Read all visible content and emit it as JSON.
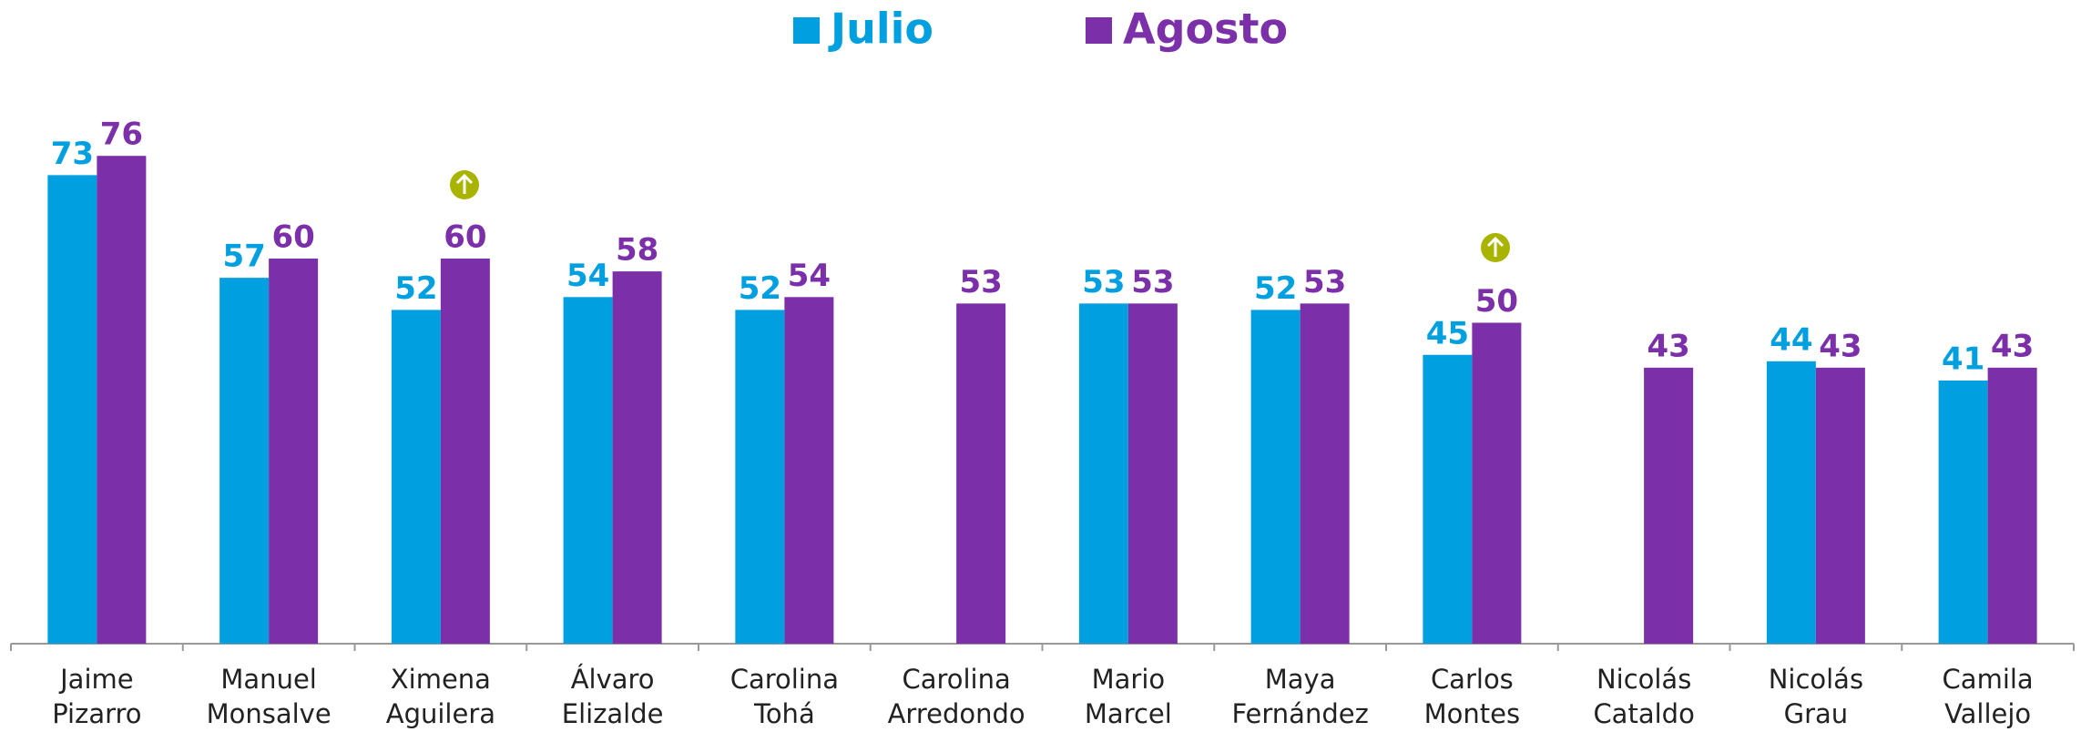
{
  "chart_data": {
    "type": "bar",
    "categories": [
      [
        "Jaime",
        "Pizarro"
      ],
      [
        "Manuel",
        "Monsalve"
      ],
      [
        "Ximena",
        "Aguilera"
      ],
      [
        "Álvaro",
        "Elizalde"
      ],
      [
        "Carolina",
        "Tohá"
      ],
      [
        "Carolina",
        "Arredondo"
      ],
      [
        "Mario",
        "Marcel"
      ],
      [
        "Maya",
        "Fernández"
      ],
      [
        "Carlos",
        "Montes"
      ],
      [
        "Nicolás",
        "Cataldo"
      ],
      [
        "Nicolás",
        "Grau"
      ],
      [
        "Camila",
        "Vallejo"
      ]
    ],
    "series": [
      {
        "name": "Julio",
        "color": "#009fe0",
        "values": [
          73,
          57,
          52,
          54,
          52,
          null,
          53,
          52,
          45,
          null,
          44,
          41
        ]
      },
      {
        "name": "Agosto",
        "color": "#7b2fa8",
        "values": [
          76,
          60,
          60,
          58,
          54,
          53,
          53,
          53,
          50,
          43,
          43,
          43
        ]
      }
    ],
    "ylim": [
      0,
      100
    ],
    "grid": false,
    "legend": "top"
  }
}
